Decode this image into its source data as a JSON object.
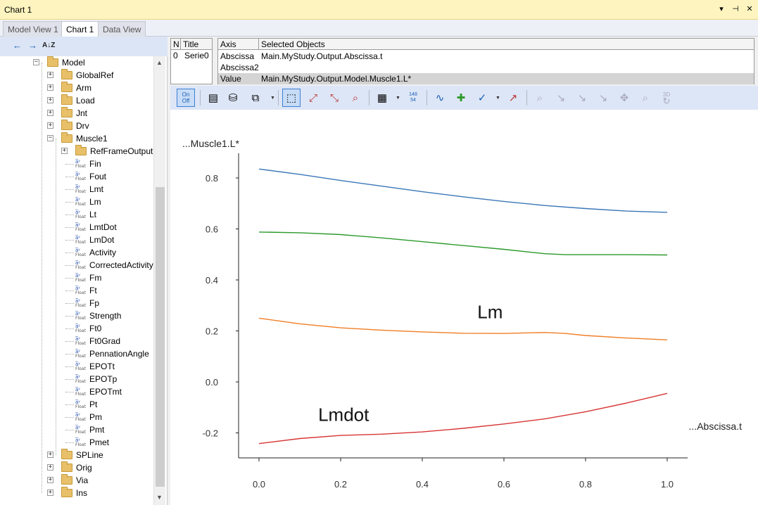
{
  "window": {
    "title": "Chart 1",
    "controls": [
      "▾",
      "⊣",
      "✕"
    ]
  },
  "tabs": [
    {
      "label": "Model View 1",
      "active": false
    },
    {
      "label": "Chart 1",
      "active": true
    },
    {
      "label": "Data View",
      "active": false
    }
  ],
  "left_toolbar": {
    "back_icon": "←",
    "forward_icon": "→",
    "sort_icon": "A↓Z"
  },
  "tree": [
    {
      "label": "Model",
      "type": "folder",
      "indent": 0,
      "expander": "-"
    },
    {
      "label": "GlobalRef",
      "type": "folder",
      "indent": 1,
      "expander": "+"
    },
    {
      "label": "Arm",
      "type": "folder",
      "indent": 1,
      "expander": "+"
    },
    {
      "label": "Load",
      "type": "folder",
      "indent": 1,
      "expander": "+"
    },
    {
      "label": "Jnt",
      "type": "folder",
      "indent": 1,
      "expander": "+"
    },
    {
      "label": "Drv",
      "type": "folder",
      "indent": 1,
      "expander": "+"
    },
    {
      "label": "Muscle1",
      "type": "folder",
      "indent": 1,
      "expander": "-"
    },
    {
      "label": "RefFrameOutput",
      "type": "folder",
      "indent": 2,
      "expander": "+"
    },
    {
      "label": "Fin",
      "type": "float",
      "indent": 2
    },
    {
      "label": "Fout",
      "type": "float",
      "indent": 2
    },
    {
      "label": "Lmt",
      "type": "float",
      "indent": 2
    },
    {
      "label": "Lm",
      "type": "float",
      "indent": 2
    },
    {
      "label": "Lt",
      "type": "float",
      "indent": 2
    },
    {
      "label": "LmtDot",
      "type": "float",
      "indent": 2
    },
    {
      "label": "LmDot",
      "type": "float",
      "indent": 2
    },
    {
      "label": "Activity",
      "type": "float",
      "indent": 2
    },
    {
      "label": "CorrectedActivity",
      "type": "float",
      "indent": 2
    },
    {
      "label": "Fm",
      "type": "float",
      "indent": 2
    },
    {
      "label": "Ft",
      "type": "float",
      "indent": 2
    },
    {
      "label": "Fp",
      "type": "float",
      "indent": 2
    },
    {
      "label": "Strength",
      "type": "float",
      "indent": 2
    },
    {
      "label": "Ft0",
      "type": "float",
      "indent": 2
    },
    {
      "label": "Ft0Grad",
      "type": "float",
      "indent": 2
    },
    {
      "label": "PennationAngle",
      "type": "float",
      "indent": 2
    },
    {
      "label": "EPOTt",
      "type": "float",
      "indent": 2
    },
    {
      "label": "EPOTp",
      "type": "float",
      "indent": 2
    },
    {
      "label": "EPOTmt",
      "type": "float",
      "indent": 2
    },
    {
      "label": "Pt",
      "type": "float",
      "indent": 2
    },
    {
      "label": "Pm",
      "type": "float",
      "indent": 2
    },
    {
      "label": "Pmt",
      "type": "float",
      "indent": 2
    },
    {
      "label": "Pmet",
      "type": "float",
      "indent": 2
    },
    {
      "label": "SPLine",
      "type": "folder",
      "indent": 1,
      "expander": "+"
    },
    {
      "label": "Orig",
      "type": "folder",
      "indent": 1,
      "expander": "+"
    },
    {
      "label": "Via",
      "type": "folder",
      "indent": 1,
      "expander": "+"
    },
    {
      "label": "Ins",
      "type": "folder",
      "indent": 1,
      "expander": "+"
    }
  ],
  "float_icon": {
    "top": "a̅ʸ",
    "bottom": "Float"
  },
  "series_table": {
    "headers": [
      "N",
      "Title"
    ],
    "rows": [
      {
        "n": "0",
        "title": "Serie0"
      }
    ]
  },
  "axis_table": {
    "headers": [
      "Axis",
      "Selected Objects"
    ],
    "rows": [
      {
        "axis": "Abscissa",
        "object": "Main.MyStudy.Output.Abscissa.t"
      },
      {
        "axis": "Abscissa2",
        "object": ""
      },
      {
        "axis": "Value",
        "object": "Main.MyStudy.Output.Model.Muscle1.L*"
      }
    ]
  },
  "toolbar": {
    "onoff_top": "On",
    "onoff_bottom": "Off",
    "numbers_top": "148",
    "numbers_bottom": "54",
    "icon_3d": "3D"
  },
  "colors": {
    "blue": "#3a77b8",
    "green": "#2b9a2b",
    "orange": "#f07e26",
    "red": "#d83434"
  },
  "chart_data": {
    "type": "line",
    "ylabel": "...Muscle1.L*",
    "xlabel": "...Abscissa.t",
    "xlim": [
      0,
      1
    ],
    "ylim": [
      -0.25,
      0.9
    ],
    "xticks": [
      "0.0",
      "0.2",
      "0.4",
      "0.6",
      "0.8",
      "1.0"
    ],
    "yticks": [
      "-0.2",
      "0.0",
      "0.2",
      "0.4",
      "0.6",
      "0.8"
    ],
    "series": [
      {
        "x": [
          0,
          0.1,
          0.2,
          0.3,
          0.4,
          0.5,
          0.6,
          0.7,
          0.8,
          0.9,
          1.0
        ],
        "values": [
          0.835,
          0.814,
          0.79,
          0.768,
          0.746,
          0.726,
          0.708,
          0.692,
          0.68,
          0.67,
          0.665
        ],
        "color": "#3a77b8"
      },
      {
        "x": [
          0,
          0.1,
          0.2,
          0.3,
          0.4,
          0.5,
          0.6,
          0.7,
          0.75,
          0.8,
          0.9,
          1.0
        ],
        "values": [
          0.588,
          0.585,
          0.578,
          0.565,
          0.55,
          0.535,
          0.52,
          0.503,
          0.499,
          0.499,
          0.499,
          0.498
        ],
        "color": "#2b9a2b"
      },
      {
        "x": [
          0,
          0.1,
          0.2,
          0.3,
          0.4,
          0.5,
          0.6,
          0.7,
          0.75,
          0.8,
          0.9,
          1.0
        ],
        "values": [
          0.25,
          0.228,
          0.212,
          0.203,
          0.196,
          0.191,
          0.19,
          0.194,
          0.19,
          0.182,
          0.172,
          0.165
        ],
        "color": "#f07e26"
      },
      {
        "x": [
          0,
          0.1,
          0.2,
          0.3,
          0.4,
          0.5,
          0.6,
          0.7,
          0.8,
          0.9,
          1.0
        ],
        "values": [
          -0.242,
          -0.222,
          -0.21,
          -0.205,
          -0.196,
          -0.182,
          -0.165,
          -0.145,
          -0.117,
          -0.083,
          -0.045
        ],
        "color": "#d83434"
      }
    ],
    "annotations": [
      {
        "text": "Lm",
        "x": 0.535,
        "y": 0.25
      },
      {
        "text": "Lmdot",
        "x": 0.145,
        "y": -0.153
      }
    ]
  }
}
